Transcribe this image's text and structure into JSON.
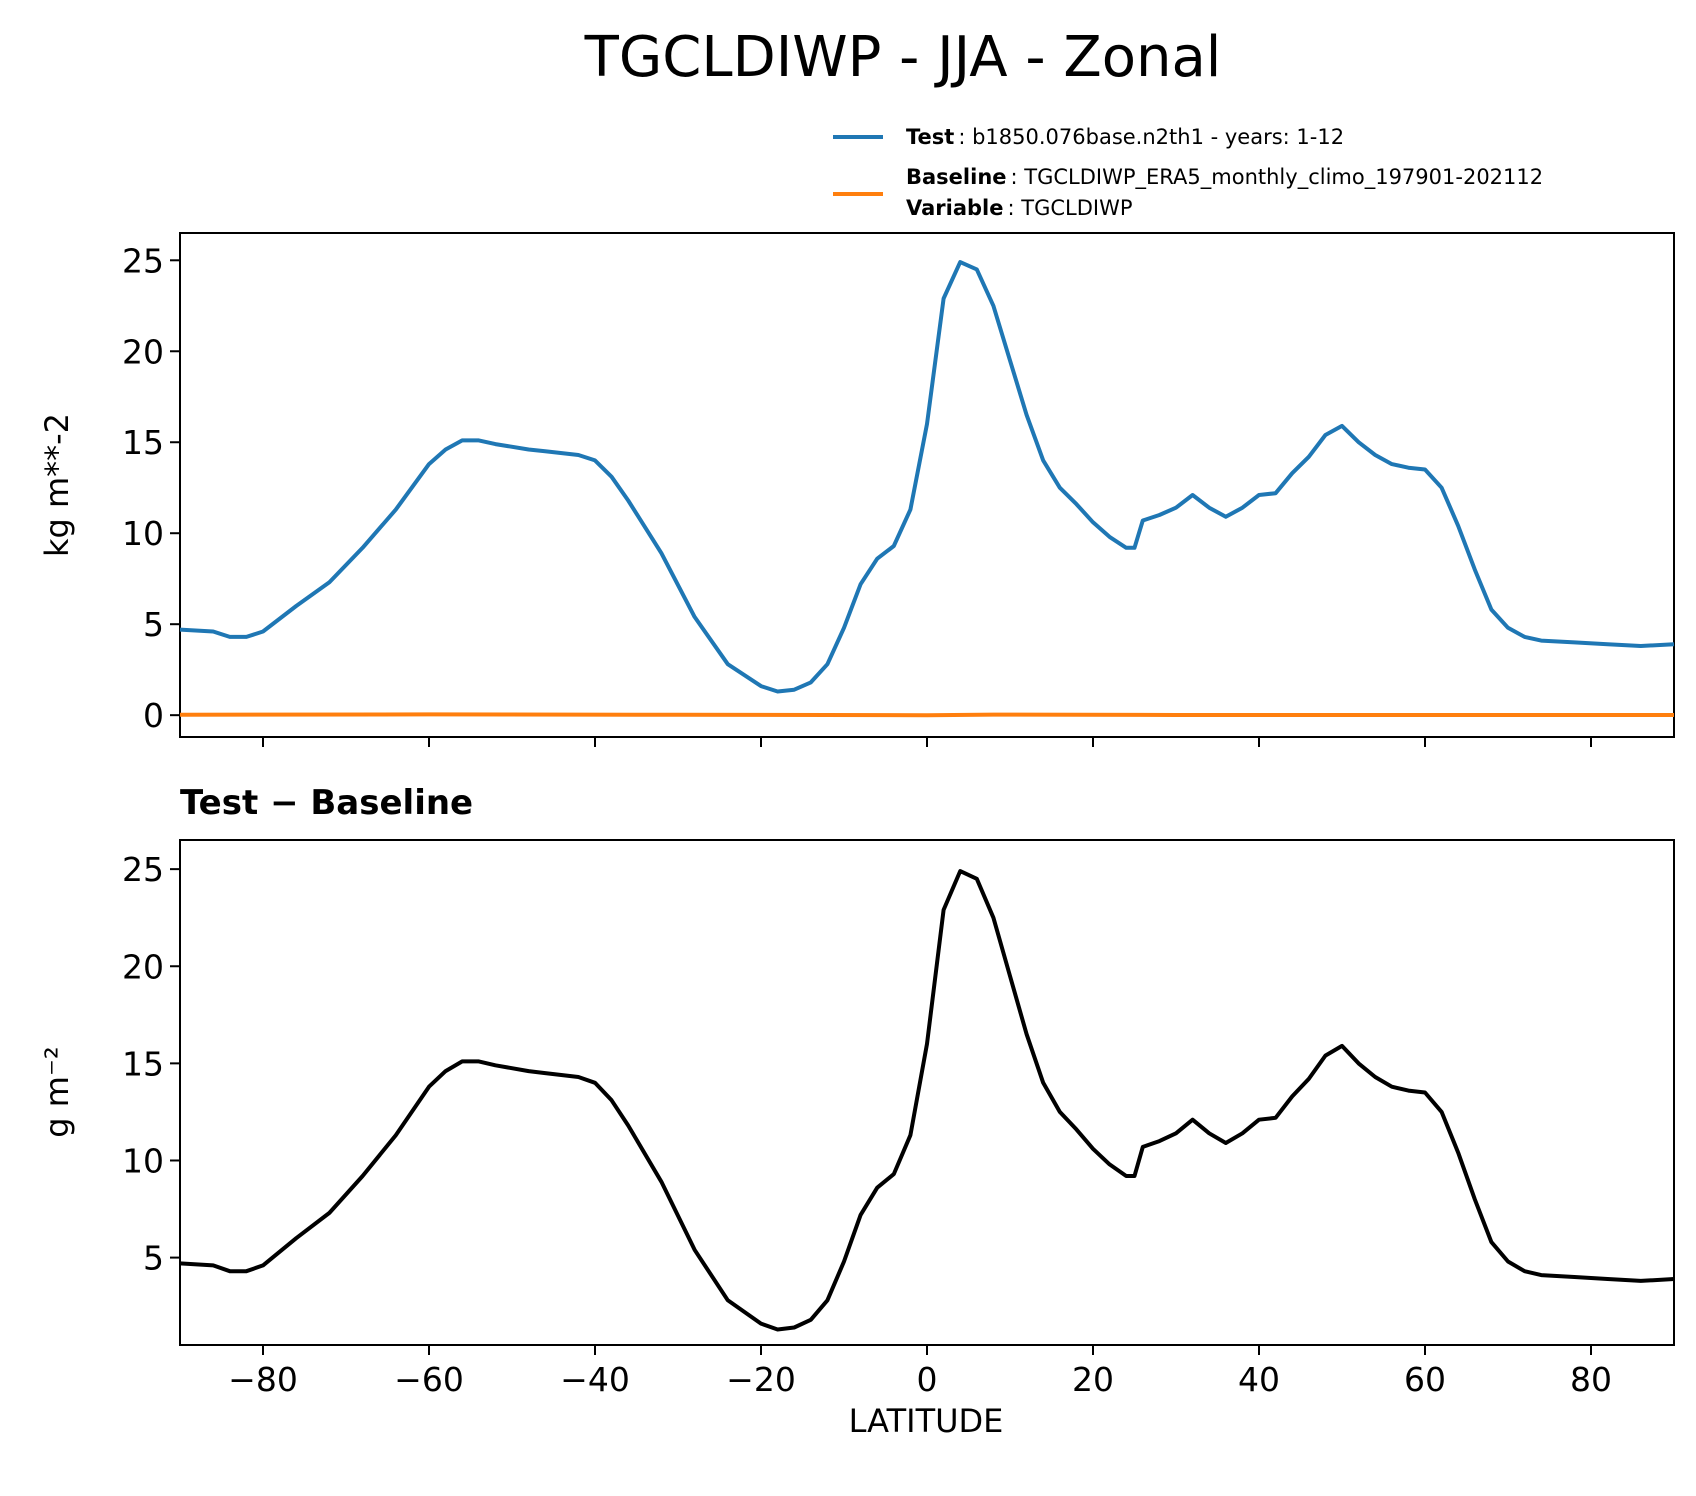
{
  "chart_data": [
    {
      "type": "line",
      "title": "TGCLDIWP - JJA - Zonal",
      "ylabel": "kg m**-2",
      "xlim": [
        -90,
        90
      ],
      "ylim": [
        -1.2,
        26.5
      ],
      "yticks": [
        0,
        5,
        10,
        15,
        20,
        25
      ],
      "legend": {
        "placement": "top-right",
        "entries": [
          {
            "key": "Test",
            "text": "b1850.076base.n2th1 - years: 1-12",
            "color": "#1f77b4"
          },
          {
            "key": "Baseline",
            "text": "TGCLDIWP_ERA5_monthly_climo_197901-202112",
            "color": "#ff7f0e"
          },
          {
            "key": "Variable",
            "text": "TGCLDIWP",
            "color": ""
          }
        ]
      },
      "series": [
        {
          "name": "Test",
          "color": "#1f77b4",
          "x": [
            -90,
            -86,
            -84,
            -82,
            -80,
            -76,
            -72,
            -68,
            -64,
            -60,
            -58,
            -56,
            -54,
            -52,
            -48,
            -46,
            -42,
            -40,
            -38,
            -36,
            -32,
            -28,
            -24,
            -20,
            -18,
            -16,
            -14,
            -12,
            -10,
            -8,
            -6,
            -4,
            -2,
            0,
            2,
            4,
            6,
            8,
            10,
            12,
            14,
            16,
            18,
            20,
            22,
            24,
            25,
            26,
            28,
            30,
            32,
            34,
            36,
            38,
            40,
            42,
            44,
            46,
            48,
            50,
            52,
            54,
            56,
            58,
            60,
            62,
            64,
            66,
            68,
            70,
            72,
            74,
            78,
            82,
            86,
            90
          ],
          "values": [
            4.7,
            4.6,
            4.3,
            4.3,
            4.6,
            6.0,
            7.3,
            9.2,
            11.3,
            13.8,
            14.6,
            15.1,
            15.1,
            14.9,
            14.6,
            14.5,
            14.3,
            14.0,
            13.1,
            11.8,
            8.9,
            5.4,
            2.8,
            1.6,
            1.3,
            1.4,
            1.8,
            2.8,
            4.8,
            7.2,
            8.6,
            9.3,
            11.3,
            16.0,
            22.9,
            24.9,
            24.5,
            22.5,
            19.5,
            16.5,
            14.0,
            12.5,
            11.6,
            10.6,
            9.8,
            9.2,
            9.2,
            10.7,
            11.0,
            11.4,
            12.1,
            11.4,
            10.9,
            11.4,
            12.1,
            12.2,
            13.3,
            14.2,
            15.4,
            15.9,
            15.0,
            14.3,
            13.8,
            13.6,
            13.5,
            12.5,
            10.4,
            8.0,
            5.8,
            4.8,
            4.3,
            4.1,
            4.0,
            3.9,
            3.8,
            3.9
          ]
        },
        {
          "name": "Baseline",
          "color": "#ff7f0e",
          "x": [
            -90,
            -60,
            -30,
            0,
            8,
            30,
            60,
            90
          ],
          "values": [
            0.02,
            0.04,
            0.02,
            0.0,
            0.03,
            0.01,
            0.01,
            0.01
          ]
        }
      ]
    },
    {
      "type": "line",
      "title": "Test − Baseline",
      "xlabel": "LATITUDE",
      "ylabel": "g m⁻²",
      "xlim": [
        -90,
        90
      ],
      "ylim": [
        0.5,
        26.5
      ],
      "yticks": [
        5,
        10,
        15,
        20,
        25
      ],
      "xticks": [
        -80,
        -60,
        -40,
        -20,
        0,
        20,
        40,
        60,
        80
      ],
      "xticklabels": [
        "−80",
        "−60",
        "−40",
        "−20",
        "0",
        "20",
        "40",
        "60",
        "80"
      ],
      "series": [
        {
          "color": "#000000",
          "x": [
            -90,
            -86,
            -84,
            -82,
            -80,
            -76,
            -72,
            -68,
            -64,
            -60,
            -58,
            -56,
            -54,
            -52,
            -48,
            -46,
            -42,
            -40,
            -38,
            -36,
            -32,
            -28,
            -24,
            -20,
            -18,
            -16,
            -14,
            -12,
            -10,
            -8,
            -6,
            -4,
            -2,
            0,
            2,
            4,
            6,
            8,
            10,
            12,
            14,
            16,
            18,
            20,
            22,
            24,
            25,
            26,
            28,
            30,
            32,
            34,
            36,
            38,
            40,
            42,
            44,
            46,
            48,
            50,
            52,
            54,
            56,
            58,
            60,
            62,
            64,
            66,
            68,
            70,
            72,
            74,
            78,
            82,
            86,
            90
          ],
          "values": [
            4.7,
            4.6,
            4.3,
            4.3,
            4.6,
            6.0,
            7.3,
            9.2,
            11.3,
            13.8,
            14.6,
            15.1,
            15.1,
            14.9,
            14.6,
            14.5,
            14.3,
            14.0,
            13.1,
            11.8,
            8.9,
            5.4,
            2.8,
            1.6,
            1.3,
            1.4,
            1.8,
            2.8,
            4.8,
            7.2,
            8.6,
            9.3,
            11.3,
            16.0,
            22.9,
            24.9,
            24.5,
            22.5,
            19.5,
            16.5,
            14.0,
            12.5,
            11.6,
            10.6,
            9.8,
            9.2,
            9.2,
            10.7,
            11.0,
            11.4,
            12.1,
            11.4,
            10.9,
            11.4,
            12.1,
            12.2,
            13.3,
            14.2,
            15.4,
            15.9,
            15.0,
            14.3,
            13.8,
            13.6,
            13.5,
            12.5,
            10.4,
            8.0,
            5.8,
            4.8,
            4.3,
            4.1,
            4.0,
            3.9,
            3.8,
            3.9
          ]
        }
      ]
    }
  ]
}
